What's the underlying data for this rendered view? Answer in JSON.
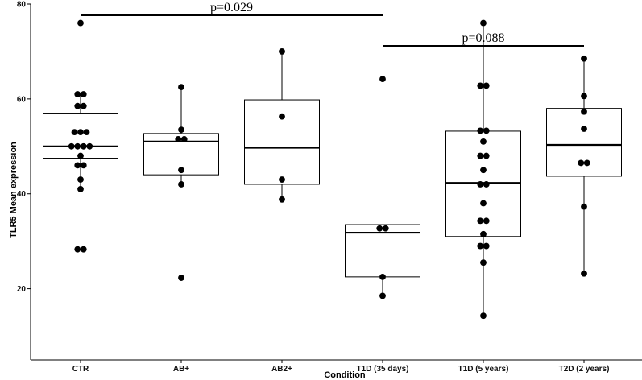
{
  "chart_data": {
    "type": "box",
    "xlabel": "Condition",
    "ylabel": "TLR5 Mean expression",
    "ylim": [
      5,
      80
    ],
    "yticks": [
      20,
      40,
      60,
      80
    ],
    "grid": false,
    "categories": [
      "CTR",
      "AB+",
      "AB2+",
      "T1D (35 days)",
      "T1D (5 years)",
      "T2D (2 years)"
    ],
    "boxes": [
      {
        "q1": 47.5,
        "median": 50.0,
        "q3": 57.0,
        "whisker_low": 41.0,
        "whisker_high": 61.0
      },
      {
        "q1": 44.0,
        "median": 51.0,
        "q3": 52.7,
        "whisker_low": 42.0,
        "whisker_high": 62.5
      },
      {
        "q1": 42.0,
        "median": 49.7,
        "q3": 59.8,
        "whisker_low": 38.8,
        "whisker_high": 70.0
      },
      {
        "q1": 22.5,
        "median": 31.8,
        "q3": 33.5,
        "whisker_low": 18.5,
        "whisker_high": 33.5
      },
      {
        "q1": 31.0,
        "median": 42.3,
        "q3": 53.2,
        "whisker_low": 14.3,
        "whisker_high": 76.0
      },
      {
        "q1": 43.7,
        "median": 50.3,
        "q3": 58.0,
        "whisker_low": 23.2,
        "whisker_high": 68.5
      }
    ],
    "points": [
      [
        76.0,
        61.0,
        61.0,
        58.5,
        58.5,
        53.0,
        53.0,
        53.0,
        50.0,
        50.0,
        50.0,
        50.0,
        48.0,
        46.0,
        46.0,
        43.0,
        41.0,
        28.3,
        28.3
      ],
      [
        62.5,
        53.5,
        51.5,
        51.5,
        45.0,
        42.0,
        22.3
      ],
      [
        70.0,
        56.3,
        43.0,
        38.8
      ],
      [
        64.2,
        32.7,
        32.7,
        22.5,
        18.5
      ],
      [
        76.0,
        62.8,
        62.8,
        53.3,
        53.3,
        51.0,
        48.0,
        48.0,
        45.0,
        42.0,
        42.0,
        38.0,
        34.3,
        34.3,
        31.5,
        29.0,
        29.0,
        25.5,
        14.3
      ],
      [
        68.5,
        60.6,
        57.3,
        53.7,
        46.5,
        46.5,
        37.3,
        23.2
      ]
    ],
    "comparisons": [
      {
        "from": 0,
        "to": 3,
        "label": "p=0.029"
      },
      {
        "from": 3,
        "to": 5,
        "label": "p=0.088"
      }
    ]
  }
}
